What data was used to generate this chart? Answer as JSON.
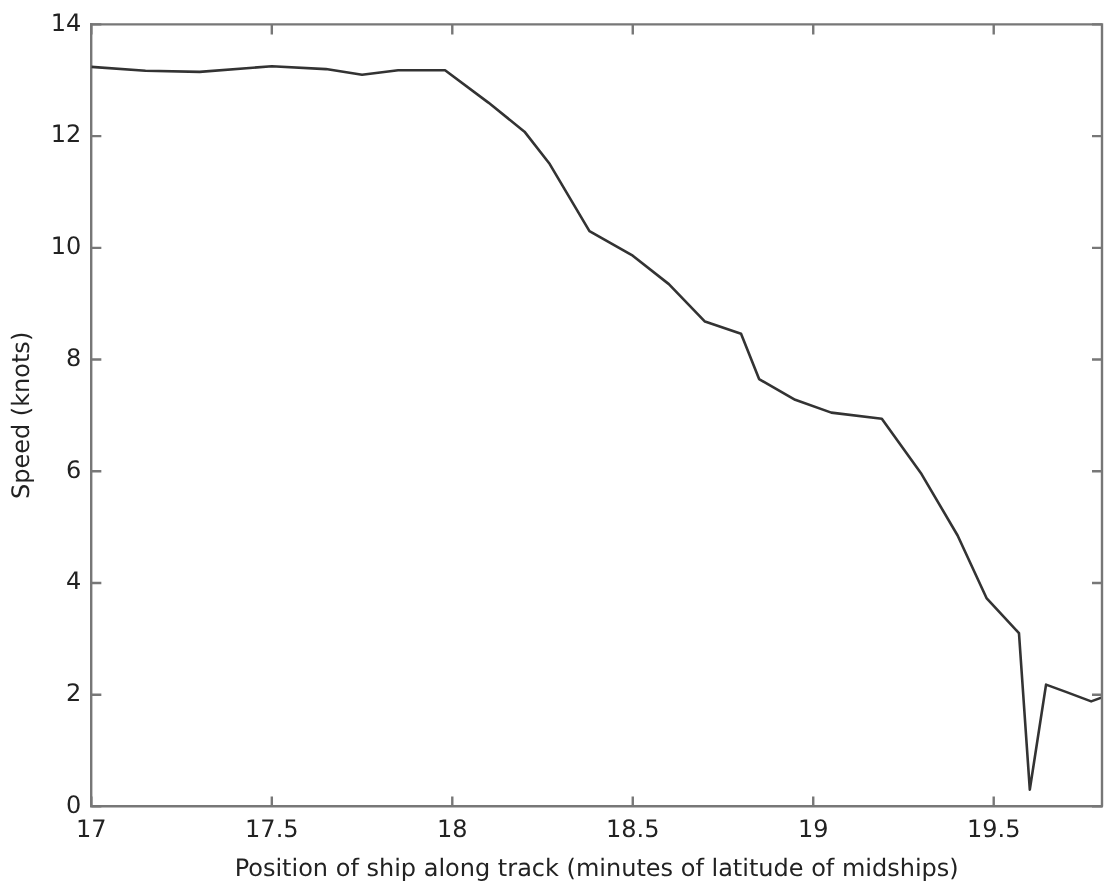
{
  "chart_data": {
    "type": "line",
    "xlabel": "Position of ship along track (minutes of latitude of midships)",
    "ylabel": "Speed (knots)",
    "x": [
      17,
      17.15,
      17.3,
      17.5,
      17.65,
      17.75,
      17.85,
      17.98,
      18.1,
      18.2,
      18.27,
      18.38,
      18.5,
      18.6,
      18.7,
      18.8,
      18.85,
      18.95,
      19.05,
      19.19,
      19.3,
      19.4,
      19.48,
      19.57,
      19.6,
      19.645,
      19.7,
      19.77,
      19.8
    ],
    "series": [
      {
        "color": "#333333",
        "values": [
          13.24,
          13.17,
          13.15,
          13.25,
          13.2,
          13.1,
          13.18,
          13.18,
          12.6,
          12.08,
          11.5,
          10.3,
          9.86,
          9.35,
          8.68,
          8.46,
          7.65,
          7.28,
          7.05,
          6.94,
          5.95,
          4.85,
          3.73,
          3.1,
          0.3,
          2.18,
          2.05,
          1.88,
          1.95
        ]
      }
    ],
    "xlim": [
      17,
      19.8
    ],
    "xticks": [
      17,
      17.5,
      18,
      18.5,
      19,
      19.5
    ],
    "ylim": [
      0,
      14
    ],
    "yticks": [
      0,
      2,
      4,
      6,
      8,
      10,
      12,
      14
    ],
    "grid": false,
    "legend": false,
    "marker": "none",
    "line_style": "solid"
  }
}
